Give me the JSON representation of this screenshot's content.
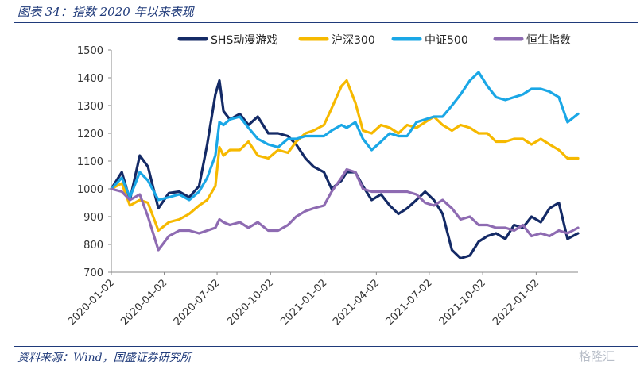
{
  "header": {
    "title": "图表 34：指数 2020 年以来表现"
  },
  "footer": {
    "source": "资料来源：Wind，国盛证券研究所"
  },
  "watermark": "格隆汇",
  "chart_data": {
    "type": "line",
    "title": "",
    "xlabel": "",
    "ylabel": "",
    "ylim": [
      700,
      1500
    ],
    "yticks": [
      700,
      800,
      900,
      1000,
      1100,
      1200,
      1300,
      1400,
      1500
    ],
    "xrange": [
      "2020-01-02",
      "2022-03-15"
    ],
    "xticks": [
      "2020-01-02",
      "2020-04-02",
      "2020-07-02",
      "2020-10-02",
      "2021-01-02",
      "2021-04-02",
      "2021-07-02",
      "2021-10-02",
      "2022-01-02"
    ],
    "grid": false,
    "legend_position": "top",
    "x": [
      "2020-01-02",
      "2020-01-20",
      "2020-02-03",
      "2020-02-20",
      "2020-03-05",
      "2020-03-23",
      "2020-04-10",
      "2020-04-28",
      "2020-05-15",
      "2020-06-01",
      "2020-06-15",
      "2020-06-29",
      "2020-07-06",
      "2020-07-13",
      "2020-07-24",
      "2020-08-10",
      "2020-08-25",
      "2020-09-10",
      "2020-09-28",
      "2020-10-15",
      "2020-11-01",
      "2020-11-15",
      "2020-12-01",
      "2020-12-15",
      "2021-01-02",
      "2021-01-15",
      "2021-02-01",
      "2021-02-10",
      "2021-02-25",
      "2021-03-10",
      "2021-03-25",
      "2021-04-10",
      "2021-04-25",
      "2021-05-10",
      "2021-05-25",
      "2021-06-10",
      "2021-06-25",
      "2021-07-10",
      "2021-07-25",
      "2021-08-10",
      "2021-08-25",
      "2021-09-10",
      "2021-09-25",
      "2021-10-10",
      "2021-10-25",
      "2021-11-10",
      "2021-11-25",
      "2021-12-10",
      "2021-12-25",
      "2022-01-10",
      "2022-01-25",
      "2022-02-10",
      "2022-02-25",
      "2022-03-15"
    ],
    "series": [
      {
        "name": "SHS动漫游戏",
        "color": "#142a66",
        "values": [
          1000,
          1060,
          960,
          1120,
          1080,
          930,
          985,
          990,
          970,
          1010,
          1160,
          1340,
          1390,
          1280,
          1250,
          1270,
          1230,
          1260,
          1200,
          1200,
          1190,
          1160,
          1110,
          1080,
          1060,
          1000,
          1030,
          1060,
          1060,
          1010,
          960,
          980,
          940,
          910,
          930,
          960,
          990,
          960,
          910,
          780,
          750,
          760,
          810,
          830,
          840,
          820,
          870,
          860,
          900,
          880,
          930,
          950,
          820,
          840
        ]
      },
      {
        "name": "沪深300",
        "color": "#f6b900",
        "values": [
          1000,
          1020,
          940,
          960,
          950,
          850,
          880,
          890,
          910,
          940,
          960,
          1010,
          1150,
          1120,
          1140,
          1140,
          1170,
          1120,
          1110,
          1140,
          1130,
          1170,
          1200,
          1210,
          1230,
          1290,
          1370,
          1390,
          1310,
          1210,
          1200,
          1230,
          1220,
          1200,
          1230,
          1220,
          1240,
          1260,
          1230,
          1210,
          1230,
          1220,
          1200,
          1200,
          1170,
          1170,
          1180,
          1180,
          1160,
          1180,
          1160,
          1140,
          1110,
          1110
        ]
      },
      {
        "name": "中证500",
        "color": "#1aa7e6",
        "values": [
          1000,
          1040,
          970,
          1060,
          1030,
          960,
          970,
          980,
          960,
          990,
          1040,
          1120,
          1240,
          1230,
          1250,
          1260,
          1220,
          1180,
          1160,
          1150,
          1180,
          1180,
          1190,
          1190,
          1190,
          1210,
          1230,
          1220,
          1240,
          1180,
          1140,
          1170,
          1200,
          1190,
          1190,
          1240,
          1250,
          1260,
          1260,
          1300,
          1340,
          1390,
          1420,
          1370,
          1330,
          1320,
          1330,
          1340,
          1360,
          1360,
          1350,
          1330,
          1240,
          1270
        ]
      },
      {
        "name": "恒生指数",
        "color": "#8e6bb2",
        "values": [
          1000,
          990,
          960,
          980,
          900,
          780,
          830,
          850,
          850,
          840,
          850,
          860,
          890,
          880,
          870,
          880,
          860,
          880,
          850,
          850,
          870,
          900,
          920,
          930,
          940,
          990,
          1040,
          1070,
          1060,
          1000,
          990,
          990,
          990,
          990,
          990,
          980,
          950,
          940,
          960,
          930,
          890,
          900,
          870,
          870,
          860,
          860,
          850,
          870,
          830,
          840,
          830,
          850,
          840,
          860
        ]
      }
    ]
  }
}
